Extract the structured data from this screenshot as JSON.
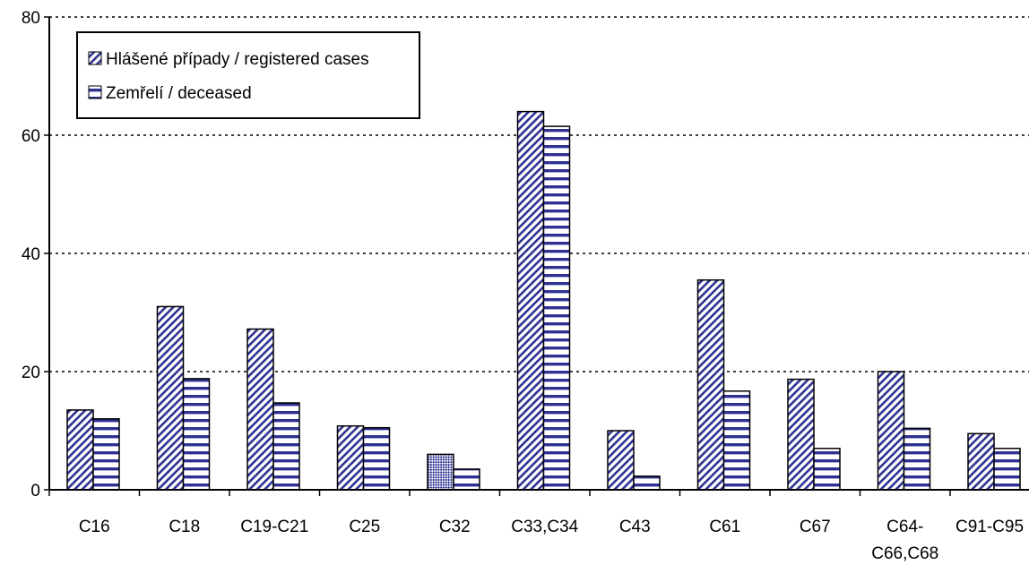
{
  "chart_data": {
    "type": "bar",
    "categories": [
      "C16",
      "C18",
      "C19-C21",
      "C25",
      "C32",
      "C33,C34",
      "C43",
      "C61",
      "C67",
      "C64-C66,C68",
      "C91-C95"
    ],
    "category_labels": [
      [
        "C16"
      ],
      [
        "C18"
      ],
      [
        "C19-C21"
      ],
      [
        "C25"
      ],
      [
        "C32"
      ],
      [
        "C33,C34"
      ],
      [
        "C43"
      ],
      [
        "C61"
      ],
      [
        "C67"
      ],
      [
        "C64-",
        "C66,C68"
      ],
      [
        "C91-C95"
      ]
    ],
    "series": [
      {
        "name": "Hlášené případy / registered cases",
        "values": [
          13.5,
          31,
          27.2,
          10.8,
          6,
          64,
          10,
          35.5,
          18.7,
          20,
          9.5
        ]
      },
      {
        "name": "Zemřelí / deceased",
        "values": [
          12,
          18.8,
          14.7,
          10.5,
          3.5,
          61.5,
          2.3,
          16.7,
          7,
          10.4,
          7
        ]
      }
    ],
    "ylim": [
      0,
      80
    ],
    "yticks": [
      0,
      20,
      40,
      60,
      80
    ],
    "ytick_labels": [
      "0",
      "20",
      "40",
      "60",
      "80"
    ],
    "grid": "horizontal dotted",
    "legend_position": "top-left",
    "colors": {
      "bar_fill": "#2e3192",
      "outline": "#000000",
      "background": "#ffffff"
    }
  }
}
